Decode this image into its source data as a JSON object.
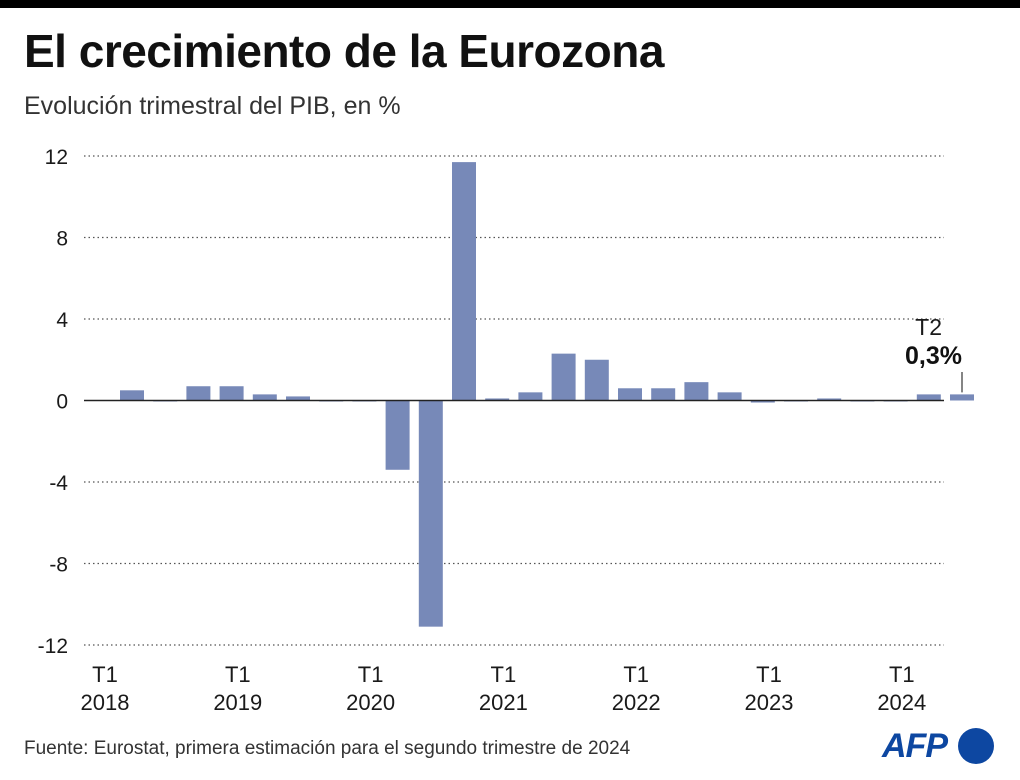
{
  "header": {
    "title": "El crecimiento de la Eurozona",
    "subtitle": "Evolución trimestral del PIB, en %"
  },
  "footer": {
    "source": "Fuente: Eurostat, primera estimación para el segundo trimestre de 2024",
    "logo": "AFP"
  },
  "colors": {
    "bar": "#7789b8",
    "grid": "#555555",
    "text": "#1a1a1a"
  },
  "chart_data": {
    "type": "bar",
    "title": "El crecimiento de la Eurozona",
    "subtitle": "Evolución trimestral del PIB, en %",
    "xlabel": "",
    "ylabel": "",
    "ylim": [
      -12,
      12
    ],
    "yticks": [
      12,
      8,
      4,
      0,
      -4,
      -8,
      -12
    ],
    "grid": true,
    "categories": [
      "T1 2018",
      "T2 2018",
      "T3 2018",
      "T4 2018",
      "T1 2019",
      "T2 2019",
      "T3 2019",
      "T4 2019",
      "T1 2020",
      "T2 2020",
      "T3 2020",
      "T4 2020",
      "T1 2021",
      "T2 2021",
      "T3 2021",
      "T4 2021",
      "T1 2022",
      "T2 2022",
      "T3 2022",
      "T4 2022",
      "T1 2023",
      "T2 2023",
      "T3 2023",
      "T4 2023",
      "T1 2024",
      "T2 2024"
    ],
    "values": [
      0.5,
      0.0,
      0.7,
      0.7,
      0.3,
      0.2,
      0.0,
      0.0,
      -3.4,
      -11.1,
      11.7,
      0.1,
      0.4,
      2.3,
      2.0,
      0.6,
      0.6,
      0.9,
      0.4,
      -0.1,
      0.0,
      0.1,
      0.0,
      0.0,
      0.3,
      0.3
    ],
    "xtick_labels": [
      {
        "index": 0,
        "quarter": "T1",
        "year": "2018"
      },
      {
        "index": 4,
        "quarter": "T1",
        "year": "2019"
      },
      {
        "index": 8,
        "quarter": "T1",
        "year": "2020"
      },
      {
        "index": 12,
        "quarter": "T1",
        "year": "2021"
      },
      {
        "index": 16,
        "quarter": "T1",
        "year": "2022"
      },
      {
        "index": 20,
        "quarter": "T1",
        "year": "2023"
      },
      {
        "index": 24,
        "quarter": "T1",
        "year": "2024"
      }
    ],
    "annotation": {
      "index": 25,
      "quarter": "T2",
      "label": "0,3%"
    }
  }
}
